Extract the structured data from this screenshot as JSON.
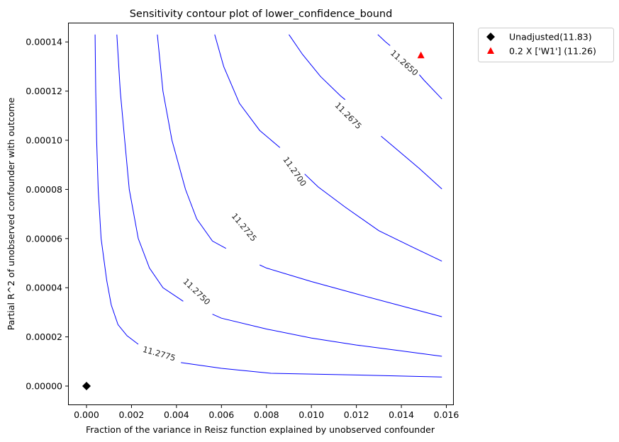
{
  "chart_data": {
    "type": "line",
    "subtype": "contour",
    "title": "Sensitivity contour plot of lower_confidence_bound",
    "xlabel": "Fraction of the variance in Reisz function explained by unobserved confounder",
    "ylabel": "Partial R^2 of unobserved confounder with outcome",
    "xlim": [
      -0.00078,
      0.01645
    ],
    "ylim": [
      -7.6e-06,
      0.0001465
    ],
    "x_ticks": [
      0.0,
      0.002,
      0.004,
      0.006,
      0.008,
      0.01,
      0.012,
      0.014,
      0.016
    ],
    "x_tick_labels": [
      "0.000",
      "0.002",
      "0.004",
      "0.006",
      "0.008",
      "0.010",
      "0.012",
      "0.014",
      "0.016"
    ],
    "y_ticks": [
      0.0,
      2e-05,
      4e-05,
      6e-05,
      8e-05,
      0.0001,
      0.00012,
      0.00014
    ],
    "y_tick_labels": [
      "0.00000",
      "0.00002",
      "0.00004",
      "0.00006",
      "0.00008",
      "0.00010",
      "0.00012",
      "0.00014"
    ],
    "grid": false,
    "legend_position": "outside upper right",
    "line_color": "#0000ff",
    "contours": [
      {
        "level": "11.2775",
        "points": [
          [
            0.00038,
            0.000143
          ],
          [
            0.00041,
            0.00012
          ],
          [
            0.00045,
            0.0001
          ],
          [
            0.00052,
            8e-05
          ],
          [
            0.00065,
            6e-05
          ],
          [
            0.0009,
            4.3e-05
          ],
          [
            0.0011,
            3.3e-05
          ],
          [
            0.0014,
            2.5e-05
          ],
          [
            0.0018,
            2.05e-05
          ],
          [
            0.0023,
            1.7e-05
          ],
          [
            0.004,
            9.8e-06
          ],
          [
            0.006,
            7.2e-06
          ],
          [
            0.0082,
            5.2e-06
          ],
          [
            0.012,
            4.5e-06
          ],
          [
            0.0158,
            3.7e-06
          ]
        ],
        "label_pos": [
          0.00323,
          1.32e-05
        ],
        "label_angle": 16,
        "gap": [
          0.0023,
          0.0042
        ]
      },
      {
        "level": "11.2750",
        "points": [
          [
            0.00135,
            0.000143
          ],
          [
            0.0015,
            0.00012
          ],
          [
            0.0017,
            0.0001
          ],
          [
            0.0019,
            8e-05
          ],
          [
            0.0023,
            6e-05
          ],
          [
            0.0028,
            4.8e-05
          ],
          [
            0.0034,
            4e-05
          ],
          [
            0.0043,
            3.45e-05
          ],
          [
            0.006,
            2.76e-05
          ],
          [
            0.008,
            2.32e-05
          ],
          [
            0.01,
            1.95e-05
          ],
          [
            0.012,
            1.67e-05
          ],
          [
            0.014,
            1.43e-05
          ],
          [
            0.0158,
            1.21e-05
          ]
        ],
        "label_pos": [
          0.0049,
          3.84e-05
        ],
        "label_angle": 44,
        "gap": [
          0.0043,
          0.0056
        ]
      },
      {
        "level": "11.2725",
        "points": [
          [
            0.00315,
            0.000143
          ],
          [
            0.0034,
            0.00012
          ],
          [
            0.0038,
            0.0001
          ],
          [
            0.0044,
            8e-05
          ],
          [
            0.0049,
            6.8e-05
          ],
          [
            0.0056,
            5.9e-05
          ],
          [
            0.0066,
            5.4e-05
          ],
          [
            0.008,
            4.8e-05
          ],
          [
            0.01,
            4.25e-05
          ],
          [
            0.012,
            3.75e-05
          ],
          [
            0.014,
            3.26e-05
          ],
          [
            0.0158,
            2.82e-05
          ]
        ],
        "label_pos": [
          0.00701,
          6.46e-05
        ],
        "label_angle": 50,
        "gap": [
          0.0062,
          0.0077
        ]
      },
      {
        "level": "11.2700",
        "points": [
          [
            0.0057,
            0.000143
          ],
          [
            0.0061,
            0.00013
          ],
          [
            0.0068,
            0.000115
          ],
          [
            0.0077,
            0.000104
          ],
          [
            0.0086,
            9.7e-05
          ],
          [
            0.0095,
            8.8e-05
          ],
          [
            0.0103,
            8.1e-05
          ],
          [
            0.0115,
            7.28e-05
          ],
          [
            0.013,
            6.32e-05
          ],
          [
            0.0145,
            5.65e-05
          ],
          [
            0.0158,
            5.08e-05
          ]
        ],
        "label_pos": [
          0.00926,
          8.73e-05
        ],
        "label_angle": 55,
        "gap": [
          0.0086,
          0.0097
        ]
      },
      {
        "level": "11.2675",
        "points": [
          [
            0.009,
            0.000143
          ],
          [
            0.0096,
            0.000135
          ],
          [
            0.0104,
            0.000126
          ],
          [
            0.0113,
            0.000118
          ],
          [
            0.0121,
            0.000112
          ],
          [
            0.0128,
            0.000104
          ],
          [
            0.0137,
            9.7e-05
          ],
          [
            0.0148,
            8.85e-05
          ],
          [
            0.0158,
            8.02e-05
          ]
        ],
        "label_pos": [
          0.01164,
          0.00011
        ],
        "label_angle": 45,
        "gap": [
          0.0115,
          0.0131
        ]
      },
      {
        "level": "11.2650",
        "points": [
          [
            0.01295,
            0.000143
          ],
          [
            0.0133,
            0.00014
          ],
          [
            0.0137,
            0.000137
          ],
          [
            0.0144,
            0.000131
          ],
          [
            0.015,
            0.0001245
          ],
          [
            0.0158,
            0.0001168
          ]
        ],
        "label_pos": [
          0.01413,
          0.0001315
        ],
        "label_angle": 42,
        "gap": [
          0.0135,
          0.0148
        ]
      }
    ],
    "markers": [
      {
        "name": "Unadjusted(11.83)",
        "x": 0.0,
        "y": 0.0,
        "shape": "diamond",
        "color": "#000000"
      },
      {
        "name": "0.2 X ['W1'] (11.26)",
        "x": 0.01487,
        "y": 0.0001345,
        "shape": "triangle",
        "color": "#ff0000"
      }
    ],
    "legend": [
      {
        "label": "Unadjusted(11.83)",
        "shape": "diamond",
        "color": "#000000"
      },
      {
        "label": "0.2 X ['W1'] (11.26)",
        "shape": "triangle",
        "color": "#ff0000"
      }
    ]
  }
}
